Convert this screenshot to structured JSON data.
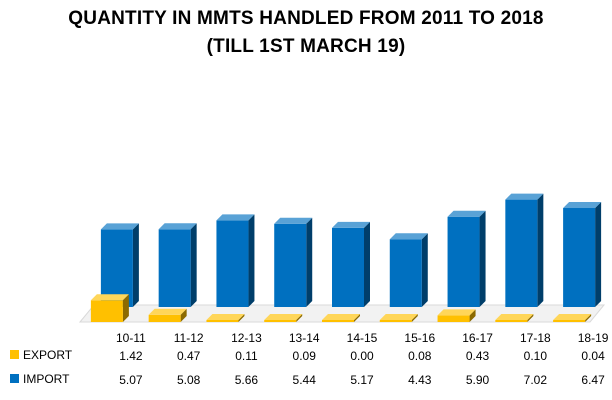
{
  "chart_data": {
    "type": "bar",
    "title": "QUANTITY IN MMTS HANDLED FROM 2011 TO 2018",
    "subtitle": "(TILL 1ST MARCH 19)",
    "categories": [
      "10-11",
      "11-12",
      "12-13",
      "13-14",
      "14-15",
      "15-16",
      "16-17",
      "17-18",
      "18-19"
    ],
    "series": [
      {
        "name": "EXPORT",
        "color": "#FFC000",
        "values": [
          1.42,
          0.47,
          0.11,
          0.09,
          0.0,
          0.08,
          0.43,
          0.1,
          0.04
        ],
        "labels": [
          "1.42",
          "0.47",
          "0.11",
          "0.09",
          "0.00",
          "0.08",
          "0.43",
          "0.10",
          "0.04"
        ]
      },
      {
        "name": "IMPORT",
        "color": "#0070C0",
        "values": [
          5.07,
          5.08,
          5.66,
          5.44,
          5.17,
          4.43,
          5.9,
          7.02,
          6.47
        ],
        "labels": [
          "5.07",
          "5.08",
          "5.66",
          "5.44",
          "5.17",
          "4.43",
          "5.90",
          "7.02",
          "6.47"
        ]
      }
    ],
    "layout": "3d-columns with data table below (export in front row, import in back row)",
    "grid": false
  }
}
